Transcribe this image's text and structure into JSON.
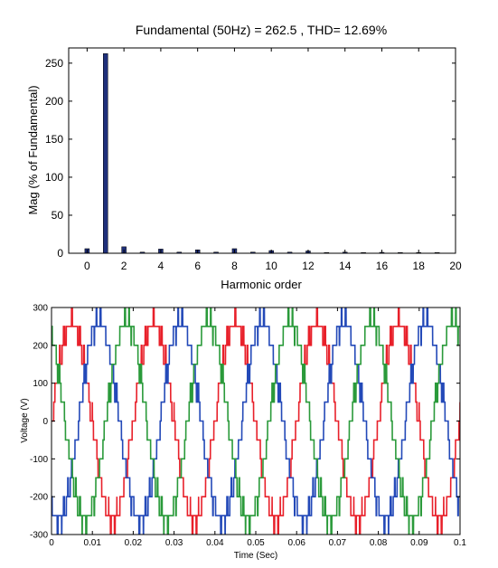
{
  "chart_data": [
    {
      "type": "bar",
      "title": "Fundamental (50Hz) = 262.5 , THD= 12.69%",
      "xlabel": "Harmonic order",
      "ylabel": "Mag (% of Fundamental)",
      "xlim": [
        -1,
        20
      ],
      "ylim": [
        0,
        270
      ],
      "xticks": [
        0,
        2,
        4,
        6,
        8,
        10,
        12,
        14,
        16,
        18,
        20
      ],
      "yticks": [
        0,
        50,
        100,
        150,
        200,
        250
      ],
      "categories": [
        0,
        1,
        2,
        3,
        4,
        5,
        6,
        7,
        8,
        9,
        10,
        11,
        12,
        13,
        14,
        15,
        16,
        17,
        18,
        19
      ],
      "values": [
        6.0,
        262.5,
        8.5,
        1.5,
        5.5,
        1.5,
        4.5,
        1.5,
        6.0,
        1.5,
        3.5,
        1.5,
        3.0,
        1.0,
        1.5,
        1.0,
        1.2,
        1.0,
        1.0,
        1.0
      ],
      "bar_color": "#1f2f7a",
      "grid": false
    },
    {
      "type": "line",
      "title": "",
      "xlabel": "Time (Sec)",
      "ylabel": "Voltage (V)",
      "xlim": [
        0,
        0.1
      ],
      "ylim": [
        -300,
        300
      ],
      "xticks": [
        "0",
        "0.01",
        "0.02",
        "0.03",
        "0.04",
        "0.05",
        "0.06",
        "0.07",
        "0.08",
        "0.09",
        "0.1"
      ],
      "yticks": [
        -300,
        -200,
        -100,
        0,
        100,
        200,
        300
      ],
      "grid": false,
      "waveform": {
        "kind": "three-phase multilevel stepped voltage with PWM switching",
        "frequency_hz": 50,
        "amplitude_v": 262.5,
        "level_step_v": 50
      },
      "series": [
        {
          "color": "#e8202a",
          "phase_deg": 0
        },
        {
          "color": "#2349b8",
          "phase_deg": -120
        },
        {
          "color": "#2a9a3a",
          "phase_deg": 120
        }
      ]
    }
  ]
}
